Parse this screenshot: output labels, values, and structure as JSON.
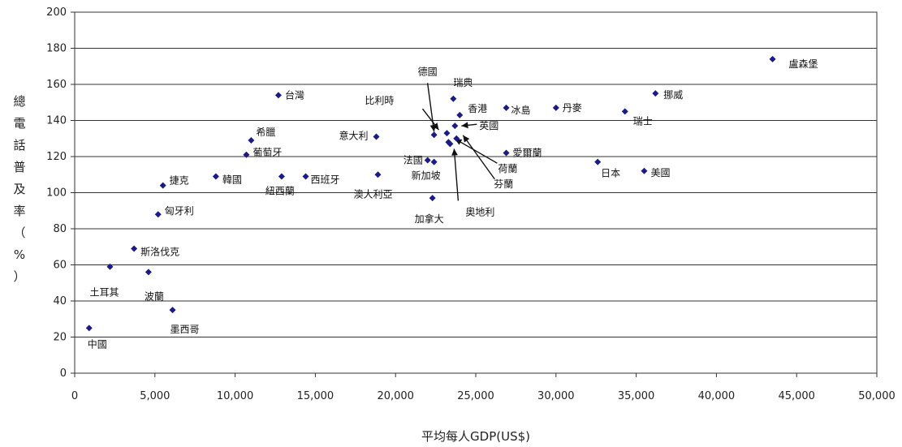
{
  "chart_data": {
    "type": "scatter",
    "title": "",
    "xlabel": "平均每人GDP(US$)",
    "ylabel": "總電話普及率（%）",
    "xlim": [
      0,
      50000
    ],
    "ylim": [
      0,
      200
    ],
    "xticks": [
      0,
      5000,
      10000,
      15000,
      20000,
      25000,
      30000,
      35000,
      40000,
      45000,
      50000
    ],
    "yticks": [
      0,
      20,
      40,
      60,
      80,
      100,
      120,
      140,
      160,
      180,
      200
    ],
    "xtick_labels": [
      "0",
      "5,000",
      "10,000",
      "15,000",
      "20,000",
      "25,000",
      "30,000",
      "35,000",
      "40,000",
      "45,000",
      "50,000"
    ],
    "ytick_labels": [
      "0",
      "20",
      "40",
      "60",
      "80",
      "100",
      "120",
      "140",
      "160",
      "180",
      "200"
    ],
    "grid": "horizontal",
    "marker_color": "#1a1a8c",
    "points": [
      {
        "label": "盧森堡",
        "x": 43500,
        "y": 174
      },
      {
        "label": "挪威",
        "x": 36200,
        "y": 155
      },
      {
        "label": "瑞士",
        "x": 34300,
        "y": 145
      },
      {
        "label": "美國",
        "x": 35500,
        "y": 112
      },
      {
        "label": "日本",
        "x": 32600,
        "y": 117
      },
      {
        "label": "丹麥",
        "x": 30000,
        "y": 147
      },
      {
        "label": "冰島",
        "x": 26900,
        "y": 147
      },
      {
        "label": "愛爾蘭",
        "x": 26900,
        "y": 122
      },
      {
        "label": "香港",
        "x": 24000,
        "y": 143
      },
      {
        "label": "瑞典",
        "x": 23600,
        "y": 152
      },
      {
        "label": "德國",
        "x": 22400,
        "y": 132
      },
      {
        "label": "比利時",
        "x": 23200,
        "y": 133
      },
      {
        "label": "英國",
        "x": 23700,
        "y": 137
      },
      {
        "label": "荷蘭",
        "x": 23300,
        "y": 128
      },
      {
        "label": "芬蘭",
        "x": 23800,
        "y": 130
      },
      {
        "label": "奧地利",
        "x": 23400,
        "y": 127
      },
      {
        "label": "法國",
        "x": 22000,
        "y": 118
      },
      {
        "label": "新加坡",
        "x": 22400,
        "y": 117
      },
      {
        "label": "意大利",
        "x": 18800,
        "y": 131
      },
      {
        "label": "加拿大",
        "x": 22300,
        "y": 97
      },
      {
        "label": "澳大利亞",
        "x": 18900,
        "y": 110
      },
      {
        "label": "台灣",
        "x": 12700,
        "y": 154
      },
      {
        "label": "希臘",
        "x": 11000,
        "y": 129
      },
      {
        "label": "葡萄牙",
        "x": 10700,
        "y": 121
      },
      {
        "label": "紐西蘭",
        "x": 12900,
        "y": 109
      },
      {
        "label": "西班牙",
        "x": 14400,
        "y": 109
      },
      {
        "label": "韓國",
        "x": 8800,
        "y": 109
      },
      {
        "label": "捷克",
        "x": 5500,
        "y": 104
      },
      {
        "label": "匈牙利",
        "x": 5200,
        "y": 88
      },
      {
        "label": "斯洛伐克",
        "x": 3700,
        "y": 69
      },
      {
        "label": "土耳其",
        "x": 2200,
        "y": 59
      },
      {
        "label": "波蘭",
        "x": 4600,
        "y": 56
      },
      {
        "label": "墨西哥",
        "x": 6100,
        "y": 35
      },
      {
        "label": "中國",
        "x": 900,
        "y": 25
      }
    ]
  }
}
